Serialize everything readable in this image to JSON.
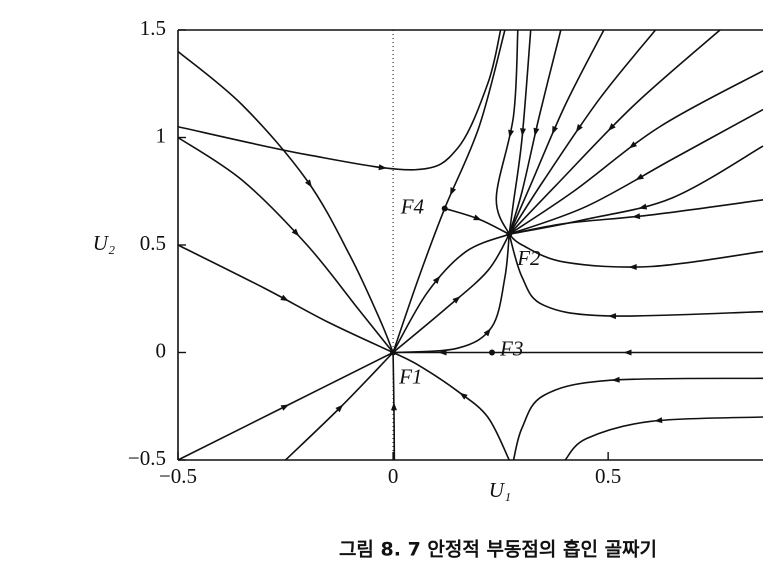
{
  "chart_data": {
    "type": "phase-portrait",
    "xlabel": "U₁",
    "ylabel": "U₂",
    "caption": "그림 8. 7  안정적 부동점의 흡인 골짜기",
    "xlim": [
      -0.5,
      0.86
    ],
    "ylim": [
      -0.5,
      1.5
    ],
    "xticks": [
      {
        "value": -0.5,
        "label": "−0.5"
      },
      0,
      0.5
    ],
    "yticks": [
      {
        "value": -0.5,
        "label": "−0.5"
      },
      0,
      0.5,
      1,
      1.5
    ],
    "zero_line": true,
    "color": "#111111",
    "fixed_points": {
      "labels": [
        "F1",
        "F2",
        "F3",
        "F4"
      ],
      "x": [
        0,
        0.27,
        0.23,
        0.12
      ],
      "y": [
        0,
        0.55,
        0,
        0.67
      ]
    },
    "trajectories": [
      {
        "x": [
          -0.5,
          -0.35,
          -0.2,
          -0.1,
          -0.03,
          0
        ],
        "y": [
          1.4,
          1.15,
          0.8,
          0.45,
          0.15,
          0
        ]
      },
      {
        "x": [
          -0.5,
          -0.35,
          -0.2,
          -0.08,
          0
        ],
        "y": [
          1.0,
          0.8,
          0.5,
          0.2,
          0
        ]
      },
      {
        "x": [
          -0.5,
          -0.3,
          -0.15,
          0
        ],
        "y": [
          0.5,
          0.3,
          0.14,
          0
        ]
      },
      {
        "x": [
          -0.5,
          -0.25,
          0
        ],
        "y": [
          -0.5,
          -0.25,
          0
        ]
      },
      {
        "x": [
          -0.25,
          -0.12,
          0
        ],
        "y": [
          -0.5,
          -0.25,
          0
        ]
      },
      {
        "x": [
          0.003,
          0.002,
          0
        ],
        "y": [
          -0.5,
          -0.25,
          0
        ]
      },
      {
        "x": [
          0.27,
          0.22,
          0.15,
          0.06,
          0
        ],
        "y": [
          -0.5,
          -0.3,
          -0.18,
          -0.06,
          0
        ]
      },
      {
        "x": [
          0.23,
          0.12,
          0
        ],
        "y": [
          0,
          0,
          0
        ]
      },
      {
        "x": [
          0.86,
          0.5,
          0.23
        ],
        "y": [
          0,
          0,
          0
        ]
      },
      {
        "x": [
          0.26,
          0.2,
          0.12,
          0.06,
          0
        ],
        "y": [
          1.5,
          1.05,
          0.67,
          0.35,
          0
        ]
      },
      {
        "x": [
          -0.5,
          -0.2,
          0.05,
          0.15,
          0.22,
          0.25
        ],
        "y": [
          1.05,
          0.92,
          0.85,
          0.95,
          1.25,
          1.5
        ]
      },
      {
        "x": [
          0,
          0.08,
          0.17,
          0.27
        ],
        "y": [
          0,
          0.28,
          0.47,
          0.55
        ]
      },
      {
        "x": [
          0,
          0.12,
          0.22,
          0.27
        ],
        "y": [
          0,
          0.2,
          0.38,
          0.55
        ]
      },
      {
        "x": [
          0,
          0.15,
          0.23,
          0.26,
          0.27
        ],
        "y": [
          0,
          0.02,
          0.12,
          0.35,
          0.55
        ]
      },
      {
        "x": [
          0.12,
          0.2,
          0.27
        ],
        "y": [
          0.67,
          0.62,
          0.55
        ]
      },
      {
        "x": [
          0.29,
          0.28,
          0.24,
          0.27
        ],
        "y": [
          1.5,
          1.1,
          0.72,
          0.55
        ]
      },
      {
        "x": [
          0.32,
          0.3,
          0.28,
          0.27
        ],
        "y": [
          1.5,
          1.0,
          0.7,
          0.55
        ]
      },
      {
        "x": [
          0.39,
          0.34,
          0.3,
          0.27
        ],
        "y": [
          1.5,
          1.1,
          0.75,
          0.55
        ]
      },
      {
        "x": [
          0.49,
          0.4,
          0.32,
          0.27
        ],
        "y": [
          1.5,
          1.15,
          0.78,
          0.55
        ]
      },
      {
        "x": [
          0.61,
          0.48,
          0.35,
          0.27
        ],
        "y": [
          1.5,
          1.18,
          0.8,
          0.55
        ]
      },
      {
        "x": [
          0.76,
          0.56,
          0.38,
          0.27
        ],
        "y": [
          1.5,
          1.15,
          0.78,
          0.55
        ]
      },
      {
        "x": [
          0.86,
          0.62,
          0.42,
          0.27
        ],
        "y": [
          1.31,
          1.05,
          0.75,
          0.55
        ]
      },
      {
        "x": [
          0.86,
          0.65,
          0.45,
          0.27
        ],
        "y": [
          1.13,
          0.9,
          0.68,
          0.55
        ]
      },
      {
        "x": [
          0.86,
          0.65,
          0.45,
          0.27
        ],
        "y": [
          0.96,
          0.72,
          0.62,
          0.55
        ]
      },
      {
        "x": [
          0.86,
          0.6,
          0.4,
          0.27
        ],
        "y": [
          0.71,
          0.64,
          0.6,
          0.55
        ]
      },
      {
        "x": [
          0.86,
          0.6,
          0.4,
          0.3,
          0.27
        ],
        "y": [
          0.47,
          0.4,
          0.42,
          0.5,
          0.55
        ]
      },
      {
        "x": [
          0.86,
          0.5,
          0.35,
          0.3,
          0.27
        ],
        "y": [
          0.19,
          0.17,
          0.22,
          0.35,
          0.55
        ]
      },
      {
        "x": [
          0.86,
          0.5,
          0.35,
          0.3,
          0.28
        ],
        "y": [
          -0.12,
          -0.13,
          -0.2,
          -0.35,
          -0.5
        ]
      },
      {
        "x": [
          0.86,
          0.6,
          0.45,
          0.4
        ],
        "y": [
          -0.3,
          -0.32,
          -0.4,
          -0.5
        ]
      }
    ]
  }
}
